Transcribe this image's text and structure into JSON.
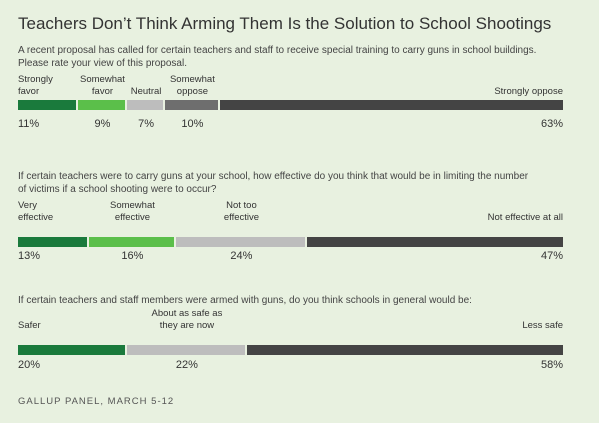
{
  "title": "Teachers Don’t Think Arming Them Is the Solution to School Shootings",
  "footer": "GALLUP PANEL, MARCH 5-12",
  "colors": {
    "dark_green": "#1a7a3c",
    "light_green": "#5bbf4a",
    "light_gray": "#bdbdbd",
    "mid_gray": "#6e6e6e",
    "dark_gray": "#444444"
  },
  "chart_data": [
    {
      "type": "bar",
      "stacked": true,
      "orientation": "horizontal",
      "question": "A recent proposal has called for certain teachers and staff to receive special training to carry guns in school buildings. Please rate your view of this proposal.",
      "categories": [
        "Strongly favor",
        "Somewhat favor",
        "Neutral",
        "Somewhat oppose",
        "Strongly oppose"
      ],
      "values": [
        11,
        9,
        7,
        10,
        63
      ],
      "labels": [
        "11%",
        "9%",
        "7%",
        "10%",
        "63%"
      ],
      "colors": [
        "#1a7a3c",
        "#5bbf4a",
        "#bdbdbd",
        "#6e6e6e",
        "#444444"
      ]
    },
    {
      "type": "bar",
      "stacked": true,
      "orientation": "horizontal",
      "question": "If certain teachers were to carry guns at your school, how effective do you think that would be in limiting the number of victims if a school shooting were to occur?",
      "categories": [
        "Very effective",
        "Somewhat effective",
        "Not too effective",
        "Not effective at all"
      ],
      "values": [
        13,
        16,
        24,
        47
      ],
      "labels": [
        "13%",
        "16%",
        "24%",
        "47%"
      ],
      "colors": [
        "#1a7a3c",
        "#5bbf4a",
        "#bdbdbd",
        "#444444"
      ]
    },
    {
      "type": "bar",
      "stacked": true,
      "orientation": "horizontal",
      "question": "If certain teachers and staff members were armed with guns, do you think schools in general would be:",
      "categories": [
        "Safer",
        "About as safe as they are now",
        "Less safe"
      ],
      "values": [
        20,
        22,
        58
      ],
      "labels": [
        "20%",
        "22%",
        "58%"
      ],
      "colors": [
        "#1a7a3c",
        "#bdbdbd",
        "#444444"
      ]
    }
  ]
}
